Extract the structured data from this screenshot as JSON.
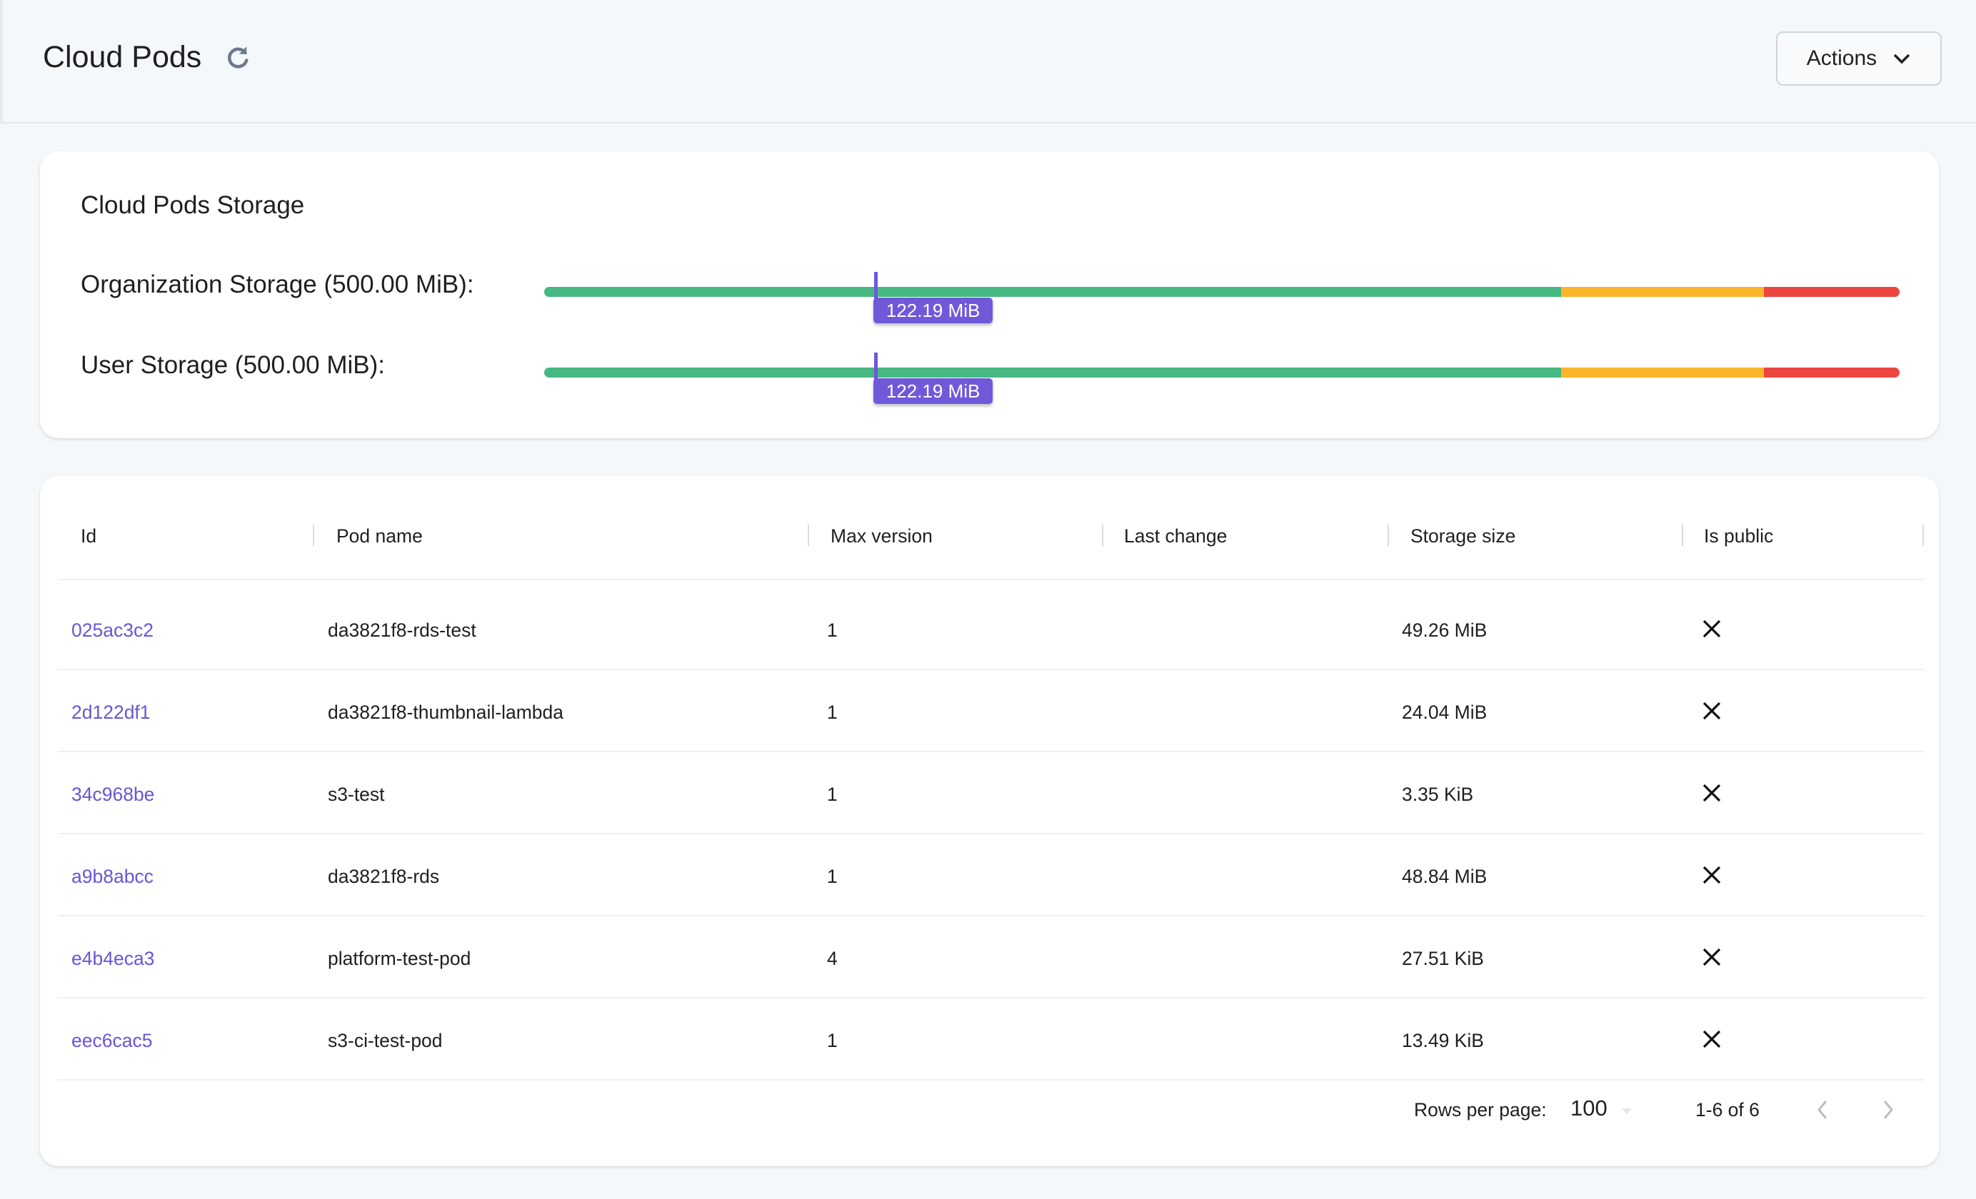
{
  "header": {
    "title": "Cloud Pods",
    "actions_label": "Actions"
  },
  "storage": {
    "title": "Cloud Pods Storage",
    "thresholds": {
      "green_until": 0.75,
      "orange_until": 0.9
    },
    "colors": {
      "green": "#47b881",
      "orange": "#fbb52a",
      "red": "#ec4641",
      "marker": "#7158d9"
    },
    "bars": [
      {
        "label": "Organization Storage (500.00 MiB):",
        "used_label": "122.19 MiB",
        "used": 122.19,
        "total": 500
      },
      {
        "label": "User Storage (500.00 MiB):",
        "used_label": "122.19 MiB",
        "used": 122.19,
        "total": 500
      }
    ]
  },
  "table": {
    "columns": [
      "Id",
      "Pod name",
      "Max version",
      "Last change",
      "Storage size",
      "Is public"
    ],
    "rows": [
      {
        "id": "025ac3c2",
        "name": "da3821f8-rds-test",
        "max_version": "1",
        "last_change": "",
        "size": "49.26 MiB",
        "is_public": false
      },
      {
        "id": "2d122df1",
        "name": "da3821f8-thumbnail-lambda",
        "max_version": "1",
        "last_change": "",
        "size": "24.04 MiB",
        "is_public": false
      },
      {
        "id": "34c968be",
        "name": "s3-test",
        "max_version": "1",
        "last_change": "",
        "size": "3.35 KiB",
        "is_public": false
      },
      {
        "id": "a9b8abcc",
        "name": "da3821f8-rds",
        "max_version": "1",
        "last_change": "",
        "size": "48.84 MiB",
        "is_public": false
      },
      {
        "id": "e4b4eca3",
        "name": "platform-test-pod",
        "max_version": "4",
        "last_change": "",
        "size": "27.51 KiB",
        "is_public": false
      },
      {
        "id": "eec6cac5",
        "name": "s3-ci-test-pod",
        "max_version": "1",
        "last_change": "",
        "size": "13.49 KiB",
        "is_public": false
      }
    ],
    "pagination": {
      "rows_per_page_label": "Rows per page:",
      "rows_per_page": "100",
      "range": "1-6 of 6"
    }
  }
}
